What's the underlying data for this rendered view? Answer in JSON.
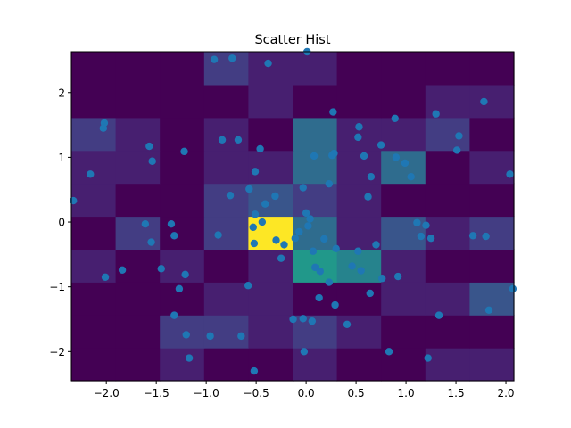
{
  "chart_data": {
    "type": "heatmap",
    "title": "Scatter Hist",
    "xlabel": "",
    "ylabel": "",
    "xlim": [
      -2.35,
      2.08
    ],
    "ylim": [
      -2.45,
      2.63
    ],
    "xticks": [
      -2.0,
      -1.5,
      -1.0,
      -0.5,
      0.0,
      0.5,
      1.0,
      1.5,
      2.0
    ],
    "xtick_labels": [
      "−2.0",
      "−1.5",
      "−1.0",
      "−0.5",
      "0.0",
      "0.5",
      "1.0",
      "1.5",
      "2.0"
    ],
    "yticks": [
      -2,
      -1,
      0,
      1,
      2
    ],
    "ytick_labels": [
      "−2",
      "−1",
      "0",
      "1",
      "2"
    ],
    "grid": false,
    "colormap": "viridis",
    "marker_color": "#1f77b4",
    "hist2d": {
      "x_edges": [
        -2.35,
        -1.907,
        -1.464,
        -1.021,
        -0.578,
        -0.135,
        0.308,
        0.751,
        1.194,
        1.637,
        2.08
      ],
      "y_edges": [
        -2.45,
        -1.942,
        -1.434,
        -0.926,
        -0.418,
        0.09,
        0.598,
        1.106,
        1.614,
        2.122,
        2.63
      ],
      "counts": [
        [
          0,
          0,
          1,
          0,
          0,
          1,
          0,
          0,
          1,
          1
        ],
        [
          0,
          0,
          2,
          2,
          1,
          2,
          1,
          0,
          0,
          0
        ],
        [
          0,
          0,
          0,
          1,
          1,
          0,
          0,
          1,
          1,
          3
        ],
        [
          1,
          0,
          1,
          0,
          1,
          6,
          5,
          1,
          0,
          0
        ],
        [
          0,
          2,
          0,
          2,
          9,
          4,
          1,
          3,
          1,
          2
        ],
        [
          1,
          0,
          0,
          2,
          3,
          2,
          1,
          0,
          0,
          0
        ],
        [
          1,
          1,
          0,
          1,
          1,
          4,
          1,
          4,
          0,
          1
        ],
        [
          2,
          1,
          0,
          1,
          0,
          4,
          1,
          1,
          2,
          0
        ],
        [
          0,
          0,
          0,
          0,
          1,
          0,
          0,
          0,
          1,
          1
        ],
        [
          0,
          0,
          0,
          2,
          1,
          1,
          0,
          0,
          0,
          0
        ]
      ]
    },
    "points": [
      [
        -2.33,
        0.33
      ],
      [
        -2.01,
        -0.85
      ],
      [
        -1.84,
        -0.74
      ],
      [
        -1.45,
        -0.72
      ],
      [
        -1.55,
        -0.31
      ],
      [
        -1.61,
        -0.03
      ],
      [
        -1.35,
        -0.03
      ],
      [
        -1.32,
        -0.21
      ],
      [
        -2.02,
        1.53
      ],
      [
        -2.03,
        1.45
      ],
      [
        -2.16,
        0.74
      ],
      [
        -1.57,
        1.17
      ],
      [
        -1.54,
        0.94
      ],
      [
        -1.22,
        1.09
      ],
      [
        -0.92,
        2.51
      ],
      [
        -0.74,
        2.53
      ],
      [
        -0.38,
        2.45
      ],
      [
        0.01,
        2.63
      ],
      [
        -0.84,
        1.27
      ],
      [
        -0.68,
        1.27
      ],
      [
        -0.46,
        1.13
      ],
      [
        -0.51,
        0.78
      ],
      [
        -0.76,
        0.41
      ],
      [
        -0.57,
        0.51
      ],
      [
        -0.41,
        0.28
      ],
      [
        -0.51,
        0.12
      ],
      [
        -0.44,
        0.0
      ],
      [
        -0.53,
        -0.08
      ],
      [
        -0.52,
        -0.33
      ],
      [
        -0.3,
        -0.28
      ],
      [
        -0.22,
        -0.35
      ],
      [
        -0.11,
        -0.25
      ],
      [
        -0.25,
        -0.56
      ],
      [
        -0.88,
        -0.2
      ],
      [
        -1.32,
        -1.44
      ],
      [
        -1.27,
        -1.03
      ],
      [
        -1.21,
        -0.81
      ],
      [
        -1.2,
        -1.74
      ],
      [
        -1.17,
        -2.1
      ],
      [
        -0.96,
        -1.76
      ],
      [
        -0.65,
        -1.76
      ],
      [
        -0.58,
        -0.98
      ],
      [
        -0.52,
        -2.3
      ],
      [
        -0.31,
        0.4
      ],
      [
        -0.13,
        -1.5
      ],
      [
        -0.03,
        -1.49
      ],
      [
        -0.02,
        -2.0
      ],
      [
        -0.03,
        0.53
      ],
      [
        0.0,
        0.14
      ],
      [
        0.04,
        0.05
      ],
      [
        0.07,
        -0.45
      ],
      [
        0.09,
        -0.7
      ],
      [
        0.14,
        -0.76
      ],
      [
        0.13,
        -1.17
      ],
      [
        0.23,
        -0.93
      ],
      [
        0.06,
        -1.53
      ],
      [
        0.29,
        -1.28
      ],
      [
        0.41,
        -1.58
      ],
      [
        0.46,
        -0.68
      ],
      [
        0.55,
        -0.75
      ],
      [
        0.64,
        -1.1
      ],
      [
        0.7,
        -0.35
      ],
      [
        0.76,
        -0.87
      ],
      [
        0.52,
        -0.45
      ],
      [
        0.62,
        0.39
      ],
      [
        0.58,
        1.02
      ],
      [
        0.65,
        0.7
      ],
      [
        0.75,
        1.19
      ],
      [
        0.27,
        1.7
      ],
      [
        0.28,
        1.06
      ],
      [
        0.26,
        1.03
      ],
      [
        0.08,
        1.02
      ],
      [
        0.52,
        1.31
      ],
      [
        0.53,
        1.47
      ],
      [
        0.89,
        1.6
      ],
      [
        0.9,
        1.0
      ],
      [
        0.99,
        0.91
      ],
      [
        1.05,
        0.7
      ],
      [
        1.11,
        -0.01
      ],
      [
        1.2,
        -0.05
      ],
      [
        1.25,
        -0.25
      ],
      [
        1.15,
        -0.22
      ],
      [
        0.92,
        -0.84
      ],
      [
        0.83,
        -2.0
      ],
      [
        1.22,
        -2.1
      ],
      [
        1.33,
        -1.44
      ],
      [
        1.3,
        1.67
      ],
      [
        1.53,
        1.33
      ],
      [
        1.51,
        1.11
      ],
      [
        1.67,
        -0.21
      ],
      [
        1.78,
        1.86
      ],
      [
        1.8,
        -0.22
      ],
      [
        1.83,
        -1.36
      ],
      [
        2.04,
        0.74
      ],
      [
        2.07,
        -1.03
      ],
      [
        0.18,
        -0.26
      ],
      [
        0.02,
        -0.06
      ],
      [
        -0.07,
        -0.15
      ],
      [
        0.3,
        -0.41
      ],
      [
        0.23,
        0.59
      ]
    ]
  }
}
